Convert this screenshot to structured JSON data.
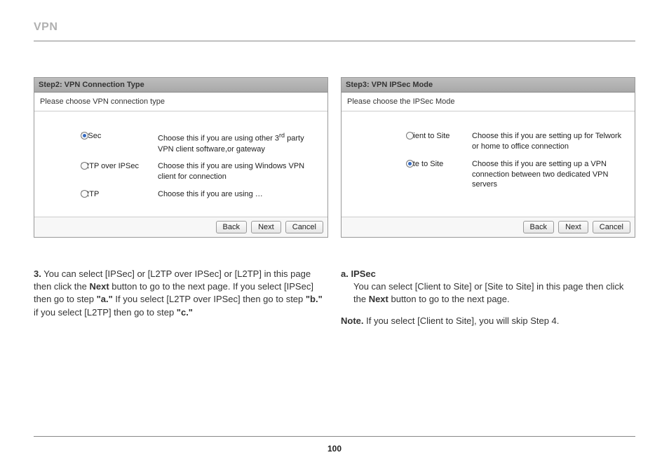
{
  "header": {
    "title": "VPN"
  },
  "page_number": "100",
  "left_panel": {
    "title": "Step2: VPN Connection Type",
    "subtitle": "Please choose VPN connection type",
    "options": [
      {
        "label": "IPSec",
        "desc_html": "Choose this if you are using other 3<sup>rd</sup> party VPN client software,or gateway",
        "checked": true
      },
      {
        "label": "L2TP over IPSec",
        "desc": "Choose this if you are using Windows VPN client for connection",
        "checked": false
      },
      {
        "label": "L2TP",
        "desc": "Choose this if you are using …",
        "checked": false
      }
    ],
    "buttons": {
      "back": "Back",
      "next": "Next",
      "cancel": "Cancel"
    }
  },
  "right_panel": {
    "title": "Step3: VPN IPSec Mode",
    "subtitle": "Please choose the IPSec Mode",
    "options": [
      {
        "label": "Client to Site",
        "desc": "Choose this if you are setting up for Telwork or home to office connection",
        "checked": false
      },
      {
        "label": "Site to Site",
        "desc": "Choose this if you are setting up a VPN connection between two dedicated VPN servers",
        "checked": true
      }
    ],
    "buttons": {
      "back": "Back",
      "next": "Next",
      "cancel": "Cancel"
    }
  },
  "left_text": {
    "num": "3.",
    "body": "You can select [IPSec] or [L2TP over IPSec] or [L2TP] in this page then click the ",
    "bold1": "Next",
    "body2": " button to go to the next page. If you select [IPSec] then go to step ",
    "bold2": "\"a.\"",
    "body3": " If you select [L2TP over IPSec] then go to step ",
    "bold3": "\"b.\"",
    "body4": " if you select [L2TP] then go to step ",
    "bold4": "\"c.\""
  },
  "right_text": {
    "heading": "a. IPSec",
    "body1": "You can select [Client to Site] or [Site to Site] in this page then click the ",
    "bold1": "Next",
    "body2": " button to go to the next page.",
    "note_label": "Note.",
    "note_body": " If you select [Client to Site], you will skip Step 4."
  },
  "style": {
    "header_color": "#b0b0b0",
    "panel_title_bg": "#b0b0b0",
    "border_color": "#999999",
    "text_color": "#333333",
    "radio_checked_color": "#356ac0",
    "button_border": "#999999"
  }
}
